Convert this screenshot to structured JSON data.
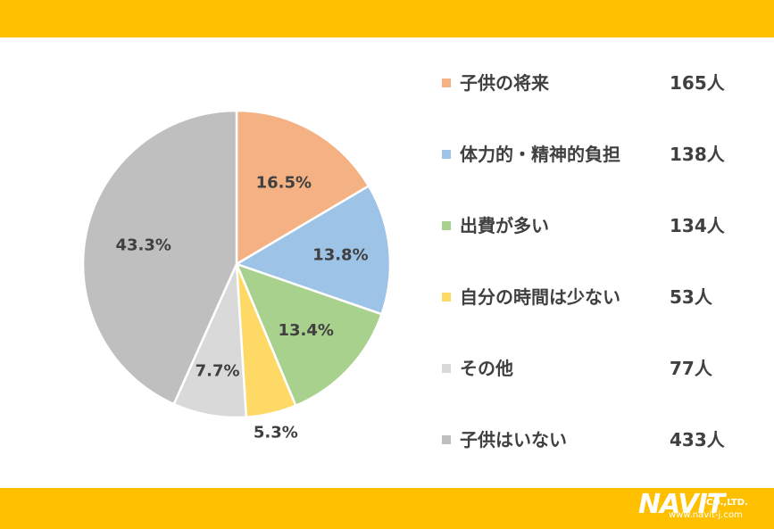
{
  "chart_data": {
    "type": "pie",
    "title": "",
    "start": "12 o'clock",
    "direction": "clockwise",
    "legend_position": "right",
    "slices": [
      {
        "label": "子供の将来",
        "count": "165人",
        "value": 16.5,
        "pct_label": "16.5%",
        "color": "#F4B183"
      },
      {
        "label": "体力的・精神的負担",
        "count": "138人",
        "value": 13.8,
        "pct_label": "13.8%",
        "color": "#9DC3E6"
      },
      {
        "label": "出費が多い",
        "count": "134人",
        "value": 13.4,
        "pct_label": "13.4%",
        "color": "#A9D18E"
      },
      {
        "label": "自分の時間は少ない",
        "count": "53人",
        "value": 5.3,
        "pct_label": "5.3%",
        "color": "#FFD966"
      },
      {
        "label": "その他",
        "count": "77人",
        "value": 7.7,
        "pct_label": "7.7%",
        "color": "#D9D9D9"
      },
      {
        "label": "子供はいない",
        "count": "433人",
        "value": 43.3,
        "pct_label": "43.3%",
        "color": "#BFBFBF"
      }
    ]
  },
  "colors": {
    "band": "#FFC000",
    "text": "#404040"
  },
  "logo": {
    "name": "NAVIT",
    "suffix": "CO.,LTD.",
    "url": "www.navit-j.com"
  }
}
